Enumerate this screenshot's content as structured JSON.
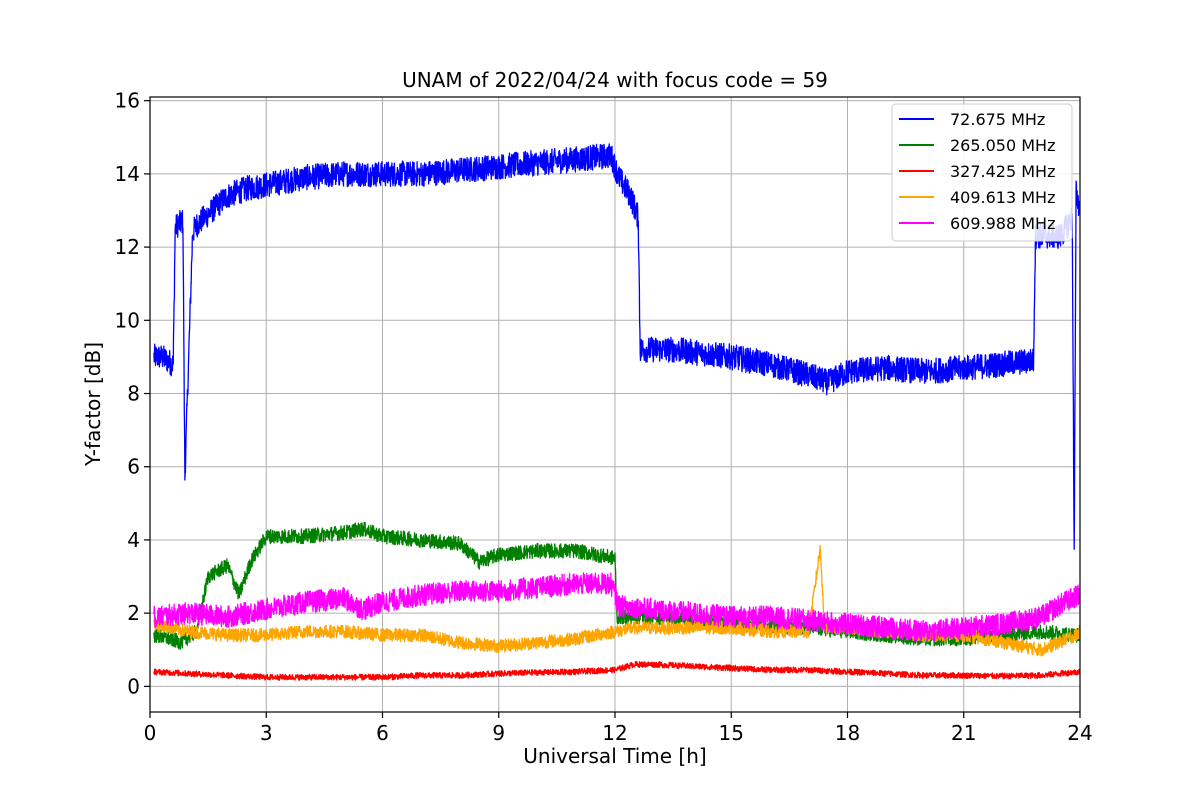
{
  "chart_data": {
    "type": "line",
    "title": "UNAM of 2022/04/24 with focus code = 59",
    "xlabel": "Universal Time [h]",
    "ylabel": "Y-factor [dB]",
    "xlim": [
      0,
      24
    ],
    "ylim": [
      -0.7,
      16.1
    ],
    "x_ticks": [
      0,
      3,
      6,
      9,
      12,
      15,
      18,
      21,
      24
    ],
    "x_tick_labels": [
      "0",
      "3",
      "6",
      "9",
      "12",
      "15",
      "18",
      "21",
      "24"
    ],
    "y_ticks": [
      0,
      2,
      4,
      6,
      8,
      10,
      12,
      14,
      16
    ],
    "y_tick_labels": [
      "0",
      "2",
      "4",
      "6",
      "8",
      "10",
      "12",
      "14",
      "16"
    ],
    "grid": true,
    "legend_position": "top-right",
    "series": [
      {
        "name": " 72.675 MHz",
        "color": "#0000ff",
        "x": [
          0.1,
          0.3,
          0.6,
          0.65,
          0.7,
          0.85,
          0.9,
          1.1,
          1.2,
          1.5,
          2.0,
          2.5,
          3.0,
          4.0,
          5.0,
          6.0,
          7.0,
          8.0,
          9.0,
          10.0,
          11.0,
          11.9,
          12.1,
          12.4,
          12.6,
          12.65,
          13.5,
          15.0,
          16.0,
          17.0,
          17.5,
          18.0,
          19.0,
          20.0,
          21.0,
          22.0,
          22.8,
          22.85,
          23.5,
          23.8,
          23.85,
          23.9,
          24.0
        ],
        "y": [
          9.0,
          9.0,
          8.8,
          12.5,
          12.6,
          12.7,
          5.7,
          12.4,
          12.6,
          12.9,
          13.4,
          13.6,
          13.7,
          13.9,
          14.0,
          14.0,
          14.0,
          14.1,
          14.2,
          14.3,
          14.4,
          14.5,
          13.9,
          13.4,
          12.8,
          9.2,
          9.2,
          9.0,
          8.8,
          8.5,
          8.3,
          8.6,
          8.7,
          8.6,
          8.7,
          8.8,
          8.9,
          12.3,
          12.3,
          12.8,
          3.5,
          13.5,
          13.0
        ],
        "noise": 0.35
      },
      {
        "name": "265.050 MHz",
        "color": "#008000",
        "x": [
          0.1,
          0.5,
          0.8,
          1.2,
          1.5,
          2.0,
          2.3,
          2.6,
          3.0,
          4.0,
          5.0,
          5.5,
          6.0,
          7.0,
          8.0,
          8.5,
          9.0,
          10.0,
          11.0,
          12.0,
          12.05,
          13.0,
          15.0,
          17.0,
          18.0,
          19.0,
          20.0,
          21.0,
          22.0,
          23.0,
          23.9,
          24.0
        ],
        "y": [
          1.4,
          1.3,
          1.2,
          1.5,
          3.0,
          3.3,
          2.5,
          3.4,
          4.1,
          4.1,
          4.2,
          4.3,
          4.1,
          4.0,
          3.9,
          3.4,
          3.6,
          3.7,
          3.7,
          3.5,
          1.9,
          1.9,
          1.7,
          1.6,
          1.5,
          1.4,
          1.3,
          1.3,
          1.4,
          1.5,
          1.4,
          1.4
        ],
        "noise": 0.2
      },
      {
        "name": "327.425 MHz",
        "color": "#ff0000",
        "x": [
          0.1,
          1.0,
          2.0,
          3.0,
          4.0,
          5.0,
          6.0,
          7.0,
          8.0,
          9.0,
          10.0,
          11.0,
          12.0,
          12.5,
          13.0,
          14.0,
          15.0,
          16.0,
          17.0,
          18.0,
          19.0,
          20.0,
          21.0,
          22.0,
          23.0,
          24.0
        ],
        "y": [
          0.4,
          0.35,
          0.3,
          0.25,
          0.25,
          0.25,
          0.25,
          0.3,
          0.3,
          0.35,
          0.38,
          0.4,
          0.45,
          0.6,
          0.6,
          0.55,
          0.5,
          0.45,
          0.45,
          0.4,
          0.35,
          0.3,
          0.3,
          0.28,
          0.3,
          0.4
        ],
        "noise": 0.08
      },
      {
        "name": "409.613 MHz",
        "color": "#ffa500",
        "x": [
          0.1,
          1.0,
          2.0,
          3.0,
          4.0,
          5.0,
          6.0,
          7.0,
          8.0,
          9.0,
          10.0,
          11.0,
          12.0,
          12.5,
          13.0,
          14.0,
          15.0,
          16.0,
          17.0,
          17.3,
          17.4,
          17.6,
          18.0,
          19.0,
          20.0,
          21.0,
          22.0,
          23.0,
          23.9,
          24.0
        ],
        "y": [
          1.7,
          1.5,
          1.4,
          1.4,
          1.5,
          1.5,
          1.4,
          1.4,
          1.2,
          1.1,
          1.2,
          1.3,
          1.5,
          1.6,
          1.6,
          1.6,
          1.6,
          1.5,
          1.5,
          3.8,
          1.6,
          1.6,
          1.6,
          1.5,
          1.4,
          1.4,
          1.2,
          1.0,
          1.4,
          1.5
        ],
        "noise": 0.18
      },
      {
        "name": "609.988 MHz",
        "color": "#ff00ff",
        "x": [
          0.1,
          1.0,
          2.0,
          3.0,
          4.0,
          5.0,
          5.5,
          6.0,
          7.0,
          8.0,
          9.0,
          10.0,
          11.0,
          11.9,
          12.1,
          13.0,
          14.0,
          15.0,
          16.0,
          17.0,
          18.0,
          19.0,
          20.0,
          21.0,
          22.0,
          23.0,
          23.6,
          24.0
        ],
        "y": [
          1.9,
          2.0,
          1.9,
          2.1,
          2.3,
          2.4,
          2.1,
          2.3,
          2.5,
          2.6,
          2.6,
          2.7,
          2.8,
          2.8,
          2.2,
          2.1,
          2.0,
          1.9,
          1.9,
          1.8,
          1.7,
          1.6,
          1.5,
          1.6,
          1.7,
          1.9,
          2.3,
          2.5
        ],
        "noise": 0.3
      }
    ]
  }
}
